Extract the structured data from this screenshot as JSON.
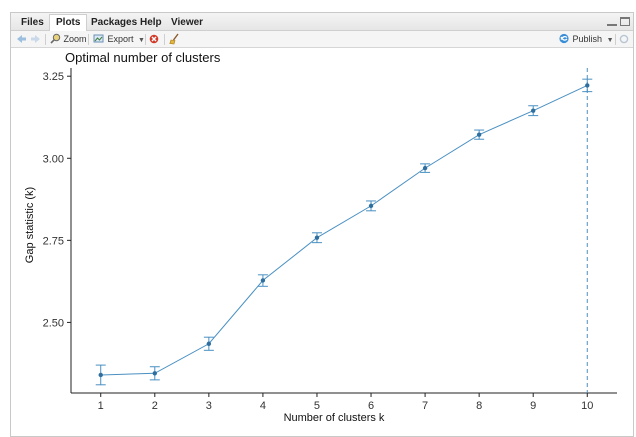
{
  "tabs": [
    {
      "label": "Files"
    },
    {
      "label": "Plots",
      "active": true
    },
    {
      "label": "Packages"
    },
    {
      "label": "Help"
    },
    {
      "label": "Viewer"
    }
  ],
  "toolbar": {
    "zoom_label": "Zoom",
    "export_label": "Export",
    "publish_label": "Publish"
  },
  "icons": {
    "back": "arrow-left-icon",
    "forward": "arrow-right-icon",
    "zoom": "magnifier-icon",
    "export": "export-icon",
    "remove": "remove-plot-icon",
    "clear": "broom-icon",
    "publish": "publish-icon",
    "refresh": "refresh-icon",
    "minimize": "minimize-icon",
    "maximize": "maximize-icon"
  },
  "colors": {
    "series": "#4a90c2",
    "point": "#2f6f9f",
    "axis": "#222222",
    "vline": "#4a90c2"
  },
  "chart_data": {
    "type": "line",
    "title": "Optimal number of clusters",
    "xlabel": "Number of clusters k",
    "ylabel": "Gap statistic (k)",
    "x": [
      1,
      2,
      3,
      4,
      5,
      6,
      7,
      8,
      9,
      10
    ],
    "y": [
      2.34,
      2.345,
      2.435,
      2.628,
      2.758,
      2.855,
      2.97,
      3.072,
      3.145,
      3.222
    ],
    "error_lower": [
      2.31,
      2.325,
      2.415,
      2.61,
      2.743,
      2.84,
      2.957,
      3.058,
      3.13,
      3.203
    ],
    "error_upper": [
      2.37,
      2.365,
      2.455,
      2.645,
      2.773,
      2.87,
      2.983,
      3.086,
      3.16,
      3.241
    ],
    "x_ticks": [
      "1",
      "2",
      "3",
      "4",
      "5",
      "6",
      "7",
      "8",
      "9",
      "10"
    ],
    "y_ticks": [
      2.5,
      2.75,
      3.0,
      3.25
    ],
    "y_tick_labels": [
      "2.50",
      "2.75",
      "3.00",
      "3.25"
    ],
    "optimal_k": 10,
    "xlim": [
      0.45,
      10.55
    ],
    "ylim": [
      2.285,
      3.275
    ],
    "grid": false,
    "legend": "none"
  }
}
